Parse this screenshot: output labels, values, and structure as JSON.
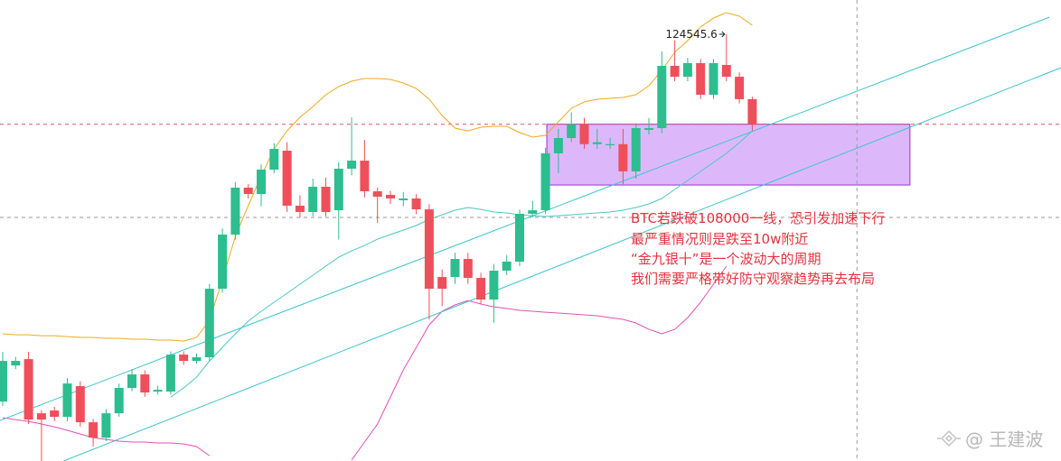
{
  "chart_data": {
    "type": "candlestick",
    "open": [
      91370,
      94630,
      95200,
      90310,
      90560,
      89990,
      92760,
      89500,
      88110,
      90310,
      92600,
      93820,
      92270,
      92270,
      95610,
      95040,
      95370,
      101560,
      106450,
      110690,
      110120,
      112320,
      114030,
      109060,
      108490,
      110770,
      108650,
      112400,
      113130,
      110360,
      110040,
      109550,
      109710,
      108730,
      102620,
      102620,
      104250,
      102540,
      100580,
      103190,
      104010,
      108330,
      108650,
      113790,
      115170,
      116420,
      114620,
      114520,
      114620,
      112160,
      115910,
      116070,
      121690,
      120710,
      121940,
      119080,
      121770,
      120710,
      118680
    ],
    "high": [
      95860,
      95400,
      95860,
      90600,
      90900,
      93500,
      93200,
      89800,
      90700,
      93000,
      94300,
      94200,
      92800,
      95900,
      95900,
      95700,
      102000,
      107000,
      111200,
      111000,
      112800,
      114700,
      114800,
      110000,
      111500,
      111600,
      113000,
      117050,
      115000,
      110700,
      110400,
      110300,
      110100,
      109200,
      103300,
      104800,
      104800,
      103000,
      103800,
      104600,
      108700,
      109500,
      114300,
      116000,
      117500,
      117000,
      116000,
      115200,
      116000,
      116500,
      117000,
      123000,
      124000,
      122400,
      122300,
      122300,
      124545.6,
      121100,
      118900
    ],
    "low": [
      90970,
      94300,
      89340,
      86000,
      89600,
      89600,
      89100,
      87300,
      87800,
      90000,
      92300,
      91800,
      92000,
      92000,
      94700,
      94800,
      95000,
      101200,
      106000,
      109700,
      109000,
      112000,
      108500,
      108000,
      108100,
      108100,
      106000,
      111800,
      109800,
      107500,
      109200,
      109000,
      108300,
      98800,
      100000,
      102000,
      102000,
      100200,
      98500,
      102800,
      103600,
      108000,
      108300,
      112000,
      114800,
      114200,
      114200,
      114200,
      111000,
      111500,
      115500,
      115600,
      120300,
      120300,
      118700,
      118700,
      120300,
      118300,
      115820
    ],
    "close": [
      95040,
      95040,
      89740,
      89740,
      89990,
      93000,
      89500,
      88110,
      90310,
      92600,
      93820,
      92190,
      92430,
      95610,
      95040,
      95370,
      101560,
      106450,
      110690,
      110120,
      112320,
      114190,
      109060,
      108490,
      110770,
      108490,
      112400,
      113130,
      110360,
      109870,
      109710,
      109710,
      108730,
      101560,
      101560,
      104250,
      102540,
      100580,
      103190,
      104010,
      108330,
      108650,
      113790,
      115170,
      116420,
      114620,
      114790,
      114620,
      112160,
      116070,
      116070,
      121690,
      120710,
      121940,
      119080,
      121940,
      120710,
      118680,
      116420
    ],
    "up_color": "#2dbd8e",
    "down_color": "#ef4f5a",
    "ylim": [
      86000,
      127640
    ],
    "bands": [
      {
        "color": "#f2a81d",
        "values": [
          97490,
          97400,
          97400,
          97320,
          97320,
          97240,
          97160,
          97160,
          97080,
          97080,
          97000,
          97000,
          96920,
          96920,
          96830,
          97160,
          98710,
          102380,
          106290,
          109060,
          111750,
          114190,
          115820,
          117050,
          118020,
          119080,
          119820,
          120310,
          120550,
          120550,
          120470,
          120140,
          119650,
          118680,
          117210,
          116070,
          115820,
          116150,
          116230,
          116230,
          115660,
          115250,
          115420,
          116640,
          117860,
          118430,
          118680,
          118760,
          118840,
          119080,
          119900,
          121280,
          122910,
          123970,
          125200,
          126010,
          126500,
          126170,
          125360
        ]
      },
      {
        "color": "#4cc7c0",
        "values": [
          null,
          null,
          null,
          null,
          null,
          null,
          null,
          null,
          null,
          null,
          null,
          null,
          null,
          91780,
          92600,
          93570,
          95040,
          96260,
          97490,
          98630,
          99530,
          100340,
          101150,
          101970,
          102780,
          103600,
          104410,
          104980,
          105470,
          106040,
          106450,
          106860,
          107270,
          107840,
          108240,
          108650,
          108900,
          108730,
          108490,
          108410,
          108240,
          108160,
          108080,
          108160,
          108240,
          108330,
          108410,
          108490,
          108650,
          108900,
          109220,
          109710,
          110530,
          111340,
          112160,
          112970,
          113790,
          114760,
          115820
        ]
      },
      {
        "color": "#e050b8",
        "values": [
          89910,
          89740,
          89580,
          89340,
          89090,
          88770,
          88440,
          88110,
          87950,
          87790,
          87710,
          87710,
          87630,
          87630,
          87540,
          87300,
          86480,
          null,
          null,
          null,
          null,
          null,
          null,
          null,
          null,
          null,
          null,
          86080,
          87710,
          89340,
          91780,
          94230,
          96260,
          98300,
          99530,
          100100,
          100500,
          100180,
          99930,
          99770,
          99610,
          99530,
          99440,
          99360,
          99280,
          99200,
          99120,
          98950,
          98790,
          98470,
          97890,
          97490,
          97890,
          98950,
          100340,
          101970,
          103600,
          null,
          null
        ]
      }
    ],
    "trend_lines": [
      {
        "color": "#3cc4cc",
        "x": [
          -0.2,
          81
        ],
        "y": [
          89660,
          126090
        ]
      },
      {
        "color": "#3cc4cc",
        "x": [
          4.7,
          81.9
        ],
        "y": [
          86000,
          121530
        ]
      }
    ],
    "zone": {
      "x": [
        42.1,
        70.2
      ],
      "y": [
        110930,
        116420
      ],
      "fill": "#dcb8fb",
      "stroke": "#9b30d9"
    },
    "hlines": [
      {
        "value": 116420,
        "color": "#e0506a"
      },
      {
        "value": 108000,
        "color": "#9a9a9a"
      }
    ],
    "vline": {
      "x": 66.1,
      "color": "#9a9a9a"
    },
    "annotations": [
      "BTC若跌破108000一线，恐引发加速下行",
      "最严重情况则是跌至10w附近",
      "“金九银十”是一个波动大的周期",
      "我们需要严格带好防守观察趋势再去布局"
    ],
    "watermark": "@ 王建波"
  }
}
